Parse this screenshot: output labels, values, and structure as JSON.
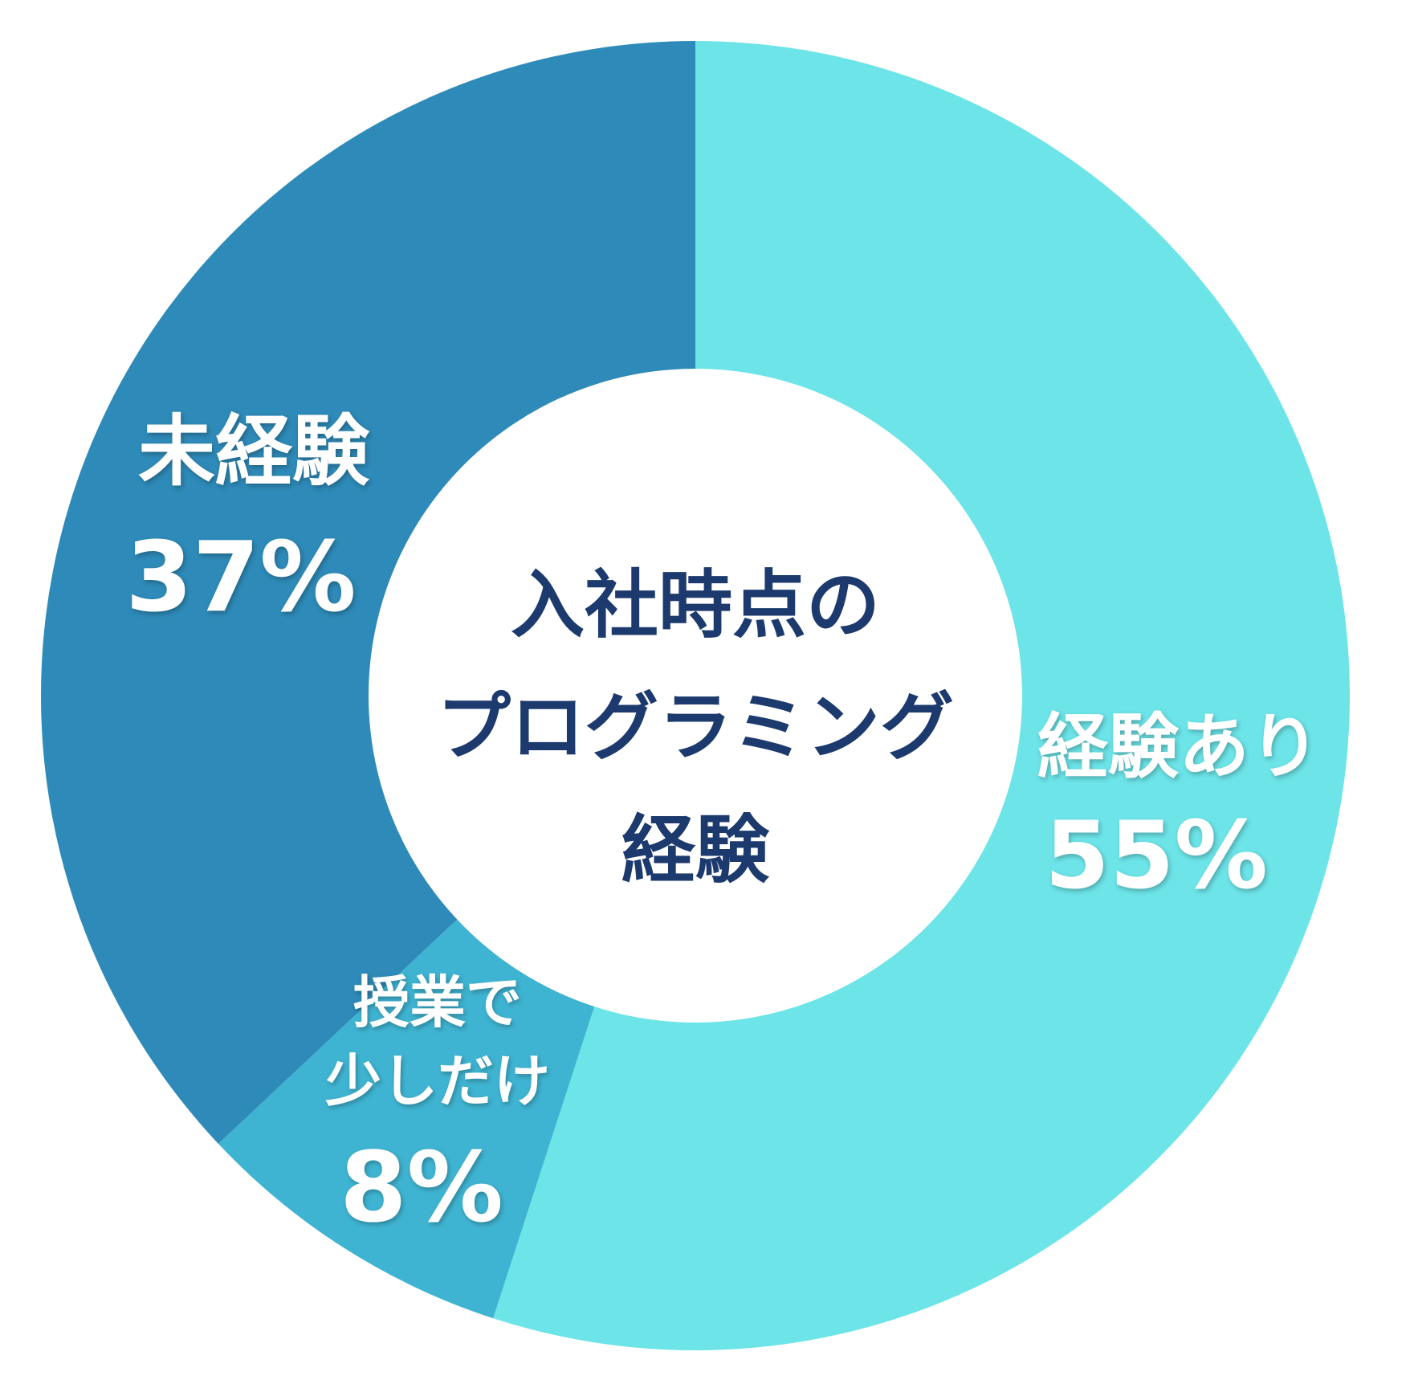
{
  "chart_data": {
    "type": "pie",
    "donut": true,
    "title_lines": [
      "入社時点の",
      "プログラミング",
      "経験"
    ],
    "slices": [
      {
        "label_lines": [
          "経験あり"
        ],
        "value": 55,
        "value_label": "55%",
        "color": "#6ce4e8"
      },
      {
        "label_lines": [
          "授業で",
          "少しだけ"
        ],
        "value": 8,
        "value_label": "8%",
        "color": "#3fb4d2"
      },
      {
        "label_lines": [
          "未経験"
        ],
        "value": 37,
        "value_label": "37%",
        "color": "#2e8ab8"
      }
    ],
    "start": "top",
    "direction": "clockwise",
    "legend": "none"
  }
}
